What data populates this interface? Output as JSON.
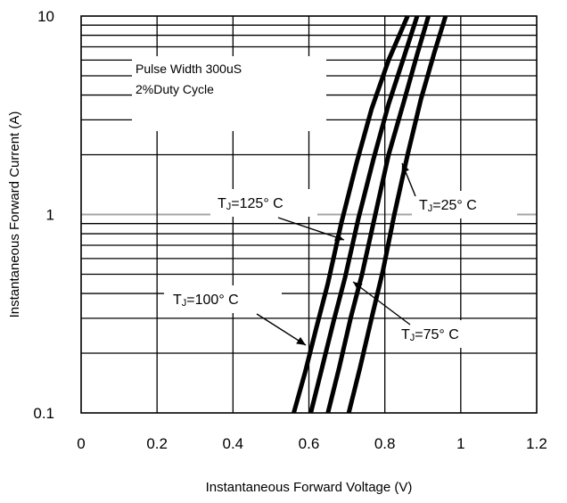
{
  "chart_data": {
    "type": "line",
    "xlabel": "Instantaneous Forward Voltage (V)",
    "ylabel": "Instantaneous Forward Current (A)",
    "xlim": [
      0,
      1.2
    ],
    "ylim": [
      0.1,
      10
    ],
    "yscale": "log",
    "grid": true,
    "x_ticks": [
      "0",
      "0.2",
      "0.4",
      "0.6",
      "0.8",
      "1",
      "1.2"
    ],
    "y_ticks": [
      "0.1",
      "1",
      "10"
    ],
    "annotation": [
      "Pulse Width 300uS",
      "2%Duty Cycle"
    ],
    "series": [
      {
        "name": "TJ=125° C",
        "label_main": "T",
        "label_sub": "J",
        "label_rest": "=125° C",
        "points": [
          [
            0.56,
            0.1
          ],
          [
            0.59,
            0.16
          ],
          [
            0.62,
            0.27
          ],
          [
            0.65,
            0.45
          ],
          [
            0.685,
            0.9
          ],
          [
            0.725,
            1.8
          ],
          [
            0.765,
            3.4
          ],
          [
            0.81,
            6.0
          ],
          [
            0.86,
            10
          ]
        ]
      },
      {
        "name": "TJ=100° C",
        "label_main": "T",
        "label_sub": "J",
        "label_rest": "=100° C",
        "points": [
          [
            0.605,
            0.1
          ],
          [
            0.635,
            0.17
          ],
          [
            0.665,
            0.29
          ],
          [
            0.695,
            0.48
          ],
          [
            0.73,
            0.95
          ],
          [
            0.77,
            1.9
          ],
          [
            0.81,
            3.6
          ],
          [
            0.85,
            6.2
          ],
          [
            0.885,
            10
          ]
        ]
      },
      {
        "name": "TJ=75° C",
        "label_main": "T",
        "label_sub": "J",
        "label_rest": "=75° C",
        "points": [
          [
            0.65,
            0.1
          ],
          [
            0.68,
            0.17
          ],
          [
            0.71,
            0.3
          ],
          [
            0.74,
            0.5
          ],
          [
            0.775,
            1.0
          ],
          [
            0.81,
            2.0
          ],
          [
            0.85,
            3.7
          ],
          [
            0.885,
            6.4
          ],
          [
            0.915,
            10
          ]
        ]
      },
      {
        "name": "TJ=25° C",
        "label_main": "T",
        "label_sub": "J",
        "label_rest": "=25° C",
        "points": [
          [
            0.705,
            0.1
          ],
          [
            0.735,
            0.17
          ],
          [
            0.765,
            0.3
          ],
          [
            0.795,
            0.52
          ],
          [
            0.825,
            1.0
          ],
          [
            0.86,
            2.0
          ],
          [
            0.895,
            3.8
          ],
          [
            0.93,
            6.5
          ],
          [
            0.96,
            10
          ]
        ]
      }
    ]
  }
}
